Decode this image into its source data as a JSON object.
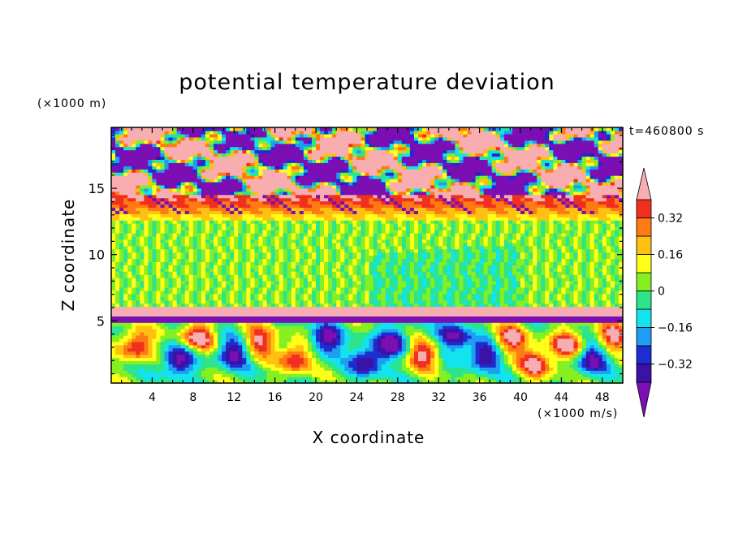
{
  "chart_data": {
    "type": "heatmap",
    "title": "potential temperature deviation",
    "xlabel": "X coordinate",
    "ylabel": "Z coordinate",
    "x_unit": "(×1000 m/s)",
    "y_unit": "(×1000 m)",
    "time_label": "t=460800 s",
    "xlim": [
      0,
      50
    ],
    "ylim": [
      0.3,
      19.6
    ],
    "x_ticks": [
      "4",
      "8",
      "12",
      "16",
      "20",
      "24",
      "28",
      "32",
      "36",
      "40",
      "44",
      "48"
    ],
    "y_ticks": [
      "5",
      "10",
      "15"
    ],
    "colorbar": {
      "levels": [
        -0.4,
        -0.32,
        -0.24,
        -0.16,
        -0.08,
        0,
        0.08,
        0.16,
        0.24,
        0.32,
        0.4
      ],
      "labels": [
        "0.32",
        "0.16",
        "0",
        "−0.16",
        "−0.32"
      ],
      "colors": [
        "#7b0fb3",
        "#3a12a6",
        "#1f2ccf",
        "#1e9df2",
        "#12e3ee",
        "#2de48a",
        "#86ef22",
        "#ffff1a",
        "#ffc012",
        "#ff7a12",
        "#f0301f",
        "#f8aeb0"
      ],
      "extend": "both"
    },
    "layers": [
      {
        "z_range": [
          0.3,
          5.0
        ],
        "description_values": "alternating positive/negative eddies between -0.4 and 0.4"
      },
      {
        "z_range": [
          5.0,
          6.0
        ],
        "value": 0.4
      },
      {
        "z_range": [
          6.0,
          12.6
        ],
        "value_range": [
          -0.02,
          0.06
        ]
      },
      {
        "z_range": [
          12.6,
          14.5
        ],
        "value_range": [
          0.16,
          0.4
        ]
      },
      {
        "z_range": [
          14.5,
          19.6
        ],
        "value_range": [
          -0.4,
          0.4
        ]
      }
    ]
  },
  "colors": {
    "axis": "#000000",
    "background": "#ffffff"
  }
}
